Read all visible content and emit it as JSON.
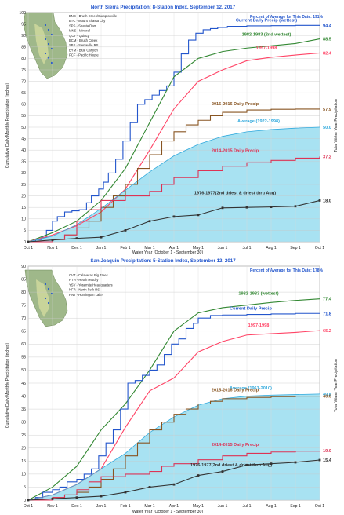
{
  "chart_data": [
    {
      "type": "line",
      "title": "North Sierra Precipitation: 8-Station Index, September 12, 2017",
      "subtitle": "Percent of Average for This Date: 191%",
      "xlabel": "Water Year (October 1 - September 30)",
      "ylabel": "Cumulative Daily/Monthly Precipitation (inches)",
      "ylabel_right": "Total Water Year Precipitation",
      "categories": [
        "Oct 1",
        "Nov 1",
        "Dec 1",
        "Jan 1",
        "Feb 1",
        "Mar 1",
        "Apr 1",
        "May 1",
        "Jun 1",
        "Jul 1",
        "Aug 1",
        "Sep 1",
        "Oct 1"
      ],
      "ylim": [
        0,
        100
      ],
      "yticks": [
        0,
        5,
        10,
        15,
        20,
        25,
        30,
        35,
        40,
        45,
        50,
        55,
        60,
        65,
        70,
        75,
        80,
        85,
        90,
        95,
        100
      ],
      "grid": true,
      "map_legend": [
        "BNC - Brush Creek/Camptonville",
        "BTC - Mount Shasta City",
        "SPS - Shasta Dam",
        "MNS - Mineral",
        "QCY - Quincy",
        "BCM - Brush Creek",
        "SBS - Sierraville RS",
        "BYM - Blue Canyon",
        "PCF - Pacific House"
      ],
      "series": [
        {
          "name": "Current Daily Precip (wettest)",
          "label_value": "94.4",
          "color": "#2255cc",
          "kind": "step",
          "x": [
            0,
            0.3,
            0.55,
            0.75,
            1.0,
            1.2,
            1.5,
            1.8,
            2.1,
            2.4,
            2.6,
            2.9,
            3.1,
            3.3,
            3.6,
            3.9,
            4.2,
            4.5,
            4.8,
            5.1,
            5.4,
            5.7,
            6.0,
            6.3,
            6.6,
            6.9,
            7.2,
            7.5,
            7.8,
            8.2,
            9.0,
            10.0,
            11.0,
            12.0
          ],
          "y": [
            0,
            1,
            2,
            5,
            9,
            11,
            13,
            13.5,
            14,
            17,
            20,
            23,
            26,
            30,
            36,
            44,
            52,
            60,
            62,
            64,
            66,
            68,
            74,
            82,
            88,
            91,
            92.5,
            93,
            93.5,
            94,
            94.2,
            94.3,
            94.4,
            94.4
          ]
        },
        {
          "name": "1982-1983 (2nd wettest)",
          "label_value": "88.5",
          "color": "#338833",
          "x": [
            0,
            1,
            2,
            3,
            4,
            5,
            6,
            7,
            8,
            9,
            10,
            11,
            12
          ],
          "y": [
            0,
            4,
            9,
            18,
            32,
            52,
            72,
            80,
            83,
            84.5,
            85.5,
            86.5,
            88.5
          ]
        },
        {
          "name": "1997-1998",
          "label_value": "82.4",
          "color": "#ff4466",
          "x": [
            0,
            1,
            2,
            3,
            4,
            5,
            6,
            7,
            8,
            9,
            10,
            11,
            12
          ],
          "y": [
            0,
            3,
            7,
            13,
            23,
            40,
            58,
            70,
            75,
            79,
            80.5,
            81.5,
            82.4
          ]
        },
        {
          "name": "2015-2016 Daily Precip",
          "label_value": "57.9",
          "color": "#885522",
          "kind": "step",
          "x": [
            0,
            1,
            1.5,
            2,
            2.5,
            3,
            3.5,
            4,
            4.5,
            5,
            5.5,
            6,
            6.5,
            7,
            7.5,
            8,
            9,
            10,
            11,
            12
          ],
          "y": [
            0,
            1,
            3,
            6,
            9,
            15,
            20,
            25,
            32,
            38,
            44,
            48,
            51,
            53,
            55,
            56.5,
            57.5,
            57.8,
            57.9,
            57.9
          ]
        },
        {
          "name": "Average (1922-1998)",
          "label_value": "50.0",
          "color": "#33aadd",
          "fill": "#a8e2f2",
          "x": [
            0,
            1,
            2,
            3,
            4,
            5,
            6,
            7,
            8,
            9,
            10,
            11,
            12
          ],
          "y": [
            0,
            2.5,
            7.5,
            14.5,
            22.5,
            30.5,
            37.5,
            42.5,
            46,
            48,
            49,
            49.6,
            50
          ]
        },
        {
          "name": "2014-2015 Daily Precip",
          "label_value": "37.2",
          "color": "#dd3355",
          "kind": "step",
          "x": [
            0,
            1,
            1.5,
            2,
            2.5,
            3,
            4,
            5,
            5.5,
            6,
            7,
            8,
            9,
            10,
            11,
            12
          ],
          "y": [
            0,
            1,
            3,
            9,
            14,
            18,
            20,
            22,
            25,
            28,
            31,
            33,
            34.5,
            35.5,
            36.5,
            37.2
          ]
        },
        {
          "name": "1976-1977(2nd driest & driest thru Aug)",
          "label_value": "18.0",
          "color": "#333333",
          "markers": true,
          "x": [
            0,
            1,
            2,
            3,
            4,
            5,
            6,
            7,
            8,
            9,
            10,
            11,
            12
          ],
          "y": [
            0,
            0.8,
            1.5,
            2,
            5,
            9,
            11,
            11.7,
            14.8,
            15,
            15.2,
            15.5,
            18
          ]
        }
      ]
    },
    {
      "type": "line",
      "title": "San Joaquin Precipitation: 5-Station Index, September 12, 2017",
      "subtitle": "Percent of Average for This Date: 178%",
      "xlabel": "Water Year (October 1 - September 30)",
      "ylabel": "Cumulative Daily/Monthly Precipitation (inches)",
      "ylabel_right": "Total Water Year Precipitation",
      "categories": [
        "Oct 1",
        "Nov 1",
        "Dec 1",
        "Jan 1",
        "Feb 1",
        "Mar 1",
        "Apr 1",
        "May 1",
        "Jun 1",
        "Jul 1",
        "Aug 1",
        "Sep 1",
        "Oct 1"
      ],
      "ylim": [
        0,
        90
      ],
      "yticks": [
        0,
        5,
        10,
        15,
        20,
        25,
        30,
        35,
        40,
        45,
        50,
        55,
        60,
        65,
        70,
        75,
        80,
        85,
        90
      ],
      "grid": true,
      "map_legend": [
        "CVT - Calaveras Big Trees",
        "HTH - Hetch Hetchy",
        "YSV - Yosemite Headquarters",
        "NFR - North Fork RS",
        "HNT - Huntington Lake"
      ],
      "series": [
        {
          "name": "1982-1983 (wettest)",
          "label_value": "77.4",
          "color": "#338833",
          "x": [
            0,
            1,
            2,
            3,
            4,
            5,
            6,
            7,
            8,
            9,
            10,
            11,
            12
          ],
          "y": [
            0,
            5,
            13,
            27,
            37,
            50,
            65,
            72,
            74,
            75,
            76,
            76.8,
            77.4
          ]
        },
        {
          "name": "Current Daily Precip",
          "label_value": "71.8",
          "color": "#2255cc",
          "kind": "step",
          "x": [
            0,
            0.3,
            0.6,
            1.0,
            1.3,
            1.6,
            2.0,
            2.3,
            2.6,
            2.9,
            3.2,
            3.5,
            3.8,
            4.1,
            4.4,
            4.7,
            5.0,
            5.3,
            5.6,
            5.9,
            6.2,
            6.5,
            6.8,
            7.0,
            7.5,
            8.0,
            9.0,
            10.0,
            11.0,
            12.0
          ],
          "y": [
            0,
            1,
            3,
            4,
            5,
            7,
            8,
            10,
            12,
            17,
            22,
            27,
            35,
            45,
            46,
            48,
            50,
            52,
            56,
            60,
            62,
            66,
            68,
            70,
            71,
            71.2,
            71.4,
            71.6,
            71.8,
            71.8
          ]
        },
        {
          "name": "1997-1998",
          "label_value": "65.2",
          "color": "#ff4466",
          "x": [
            0,
            1,
            2,
            3,
            4,
            5,
            6,
            7,
            8,
            9,
            10,
            11,
            12
          ],
          "y": [
            0,
            2,
            6,
            12,
            28,
            42,
            47,
            57,
            61,
            63.5,
            64,
            64.5,
            65.2
          ]
        },
        {
          "name": "Average (1961-2010)",
          "label_value": "40.8",
          "color": "#33aadd",
          "fill": "#a8e2f2",
          "x": [
            0,
            1,
            2,
            3,
            4,
            5,
            6,
            7,
            8,
            9,
            10,
            11,
            12
          ],
          "y": [
            0,
            2,
            6,
            12,
            18,
            26,
            32,
            36.5,
            39,
            40,
            40.4,
            40.6,
            40.8
          ]
        },
        {
          "name": "2015-2016 Daily Precip",
          "label_value": "40.0",
          "color": "#885522",
          "kind": "step",
          "x": [
            0,
            1,
            1.5,
            2,
            2.5,
            3,
            3.5,
            4,
            4.5,
            5,
            5.5,
            6,
            6.5,
            7,
            7.5,
            8,
            9,
            10,
            11,
            12
          ],
          "y": [
            0,
            1,
            2,
            3,
            5,
            8,
            12,
            17,
            22,
            27,
            30,
            33,
            35,
            37,
            38,
            39,
            39.5,
            39.8,
            40,
            40
          ]
        },
        {
          "name": "2014-2015 Daily Precip",
          "label_value": "19.0",
          "color": "#dd3355",
          "kind": "step",
          "x": [
            0,
            1,
            1.5,
            2,
            2.5,
            3,
            4,
            5,
            5.5,
            6,
            7,
            8,
            9,
            10,
            11,
            12
          ],
          "y": [
            0,
            1,
            2,
            4,
            7,
            9,
            10,
            11,
            13,
            14,
            15.5,
            17,
            18,
            18.5,
            18.8,
            19
          ]
        },
        {
          "name": "1976-1977(2nd driest & driest thru Aug)",
          "label_value": "15.4",
          "color": "#333333",
          "markers": true,
          "x": [
            0,
            1,
            2,
            3,
            4,
            5,
            6,
            7,
            8,
            9,
            10,
            11,
            12
          ],
          "y": [
            0,
            0.5,
            1,
            1.5,
            3,
            5,
            6,
            9.5,
            11,
            13.5,
            14,
            14.5,
            15.4
          ]
        }
      ]
    }
  ]
}
